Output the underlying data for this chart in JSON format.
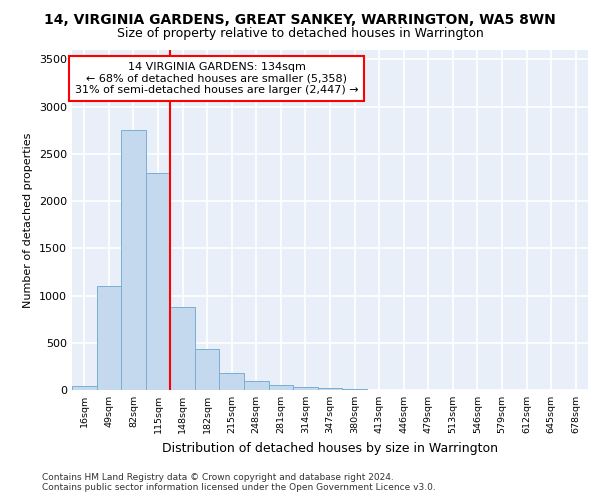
{
  "title": "14, VIRGINIA GARDENS, GREAT SANKEY, WARRINGTON, WA5 8WN",
  "subtitle": "Size of property relative to detached houses in Warrington",
  "xlabel": "Distribution of detached houses by size in Warrington",
  "ylabel": "Number of detached properties",
  "categories": [
    "16sqm",
    "49sqm",
    "82sqm",
    "115sqm",
    "148sqm",
    "182sqm",
    "215sqm",
    "248sqm",
    "281sqm",
    "314sqm",
    "347sqm",
    "380sqm",
    "413sqm",
    "446sqm",
    "479sqm",
    "513sqm",
    "546sqm",
    "579sqm",
    "612sqm",
    "645sqm",
    "678sqm"
  ],
  "values": [
    45,
    1100,
    2750,
    2300,
    880,
    430,
    175,
    95,
    55,
    35,
    20,
    8,
    3,
    2,
    1,
    0,
    0,
    0,
    0,
    0,
    0
  ],
  "bar_color": "#c5d9ee",
  "bar_edge_color": "#7aaed4",
  "red_line_color": "red",
  "red_line_x": 3.5,
  "annotation_text": "14 VIRGINIA GARDENS: 134sqm\n← 68% of detached houses are smaller (5,358)\n31% of semi-detached houses are larger (2,447) →",
  "annotation_box_color": "white",
  "annotation_box_edge_color": "red",
  "ylim": [
    0,
    3600
  ],
  "yticks": [
    0,
    500,
    1000,
    1500,
    2000,
    2500,
    3000,
    3500
  ],
  "background_color": "#e8eff8",
  "grid_color": "white",
  "footer": "Contains HM Land Registry data © Crown copyright and database right 2024.\nContains public sector information licensed under the Open Government Licence v3.0.",
  "title_fontsize": 10,
  "subtitle_fontsize": 9,
  "xlabel_fontsize": 9,
  "ylabel_fontsize": 8,
  "annot_fontsize": 8,
  "footer_fontsize": 6.5
}
